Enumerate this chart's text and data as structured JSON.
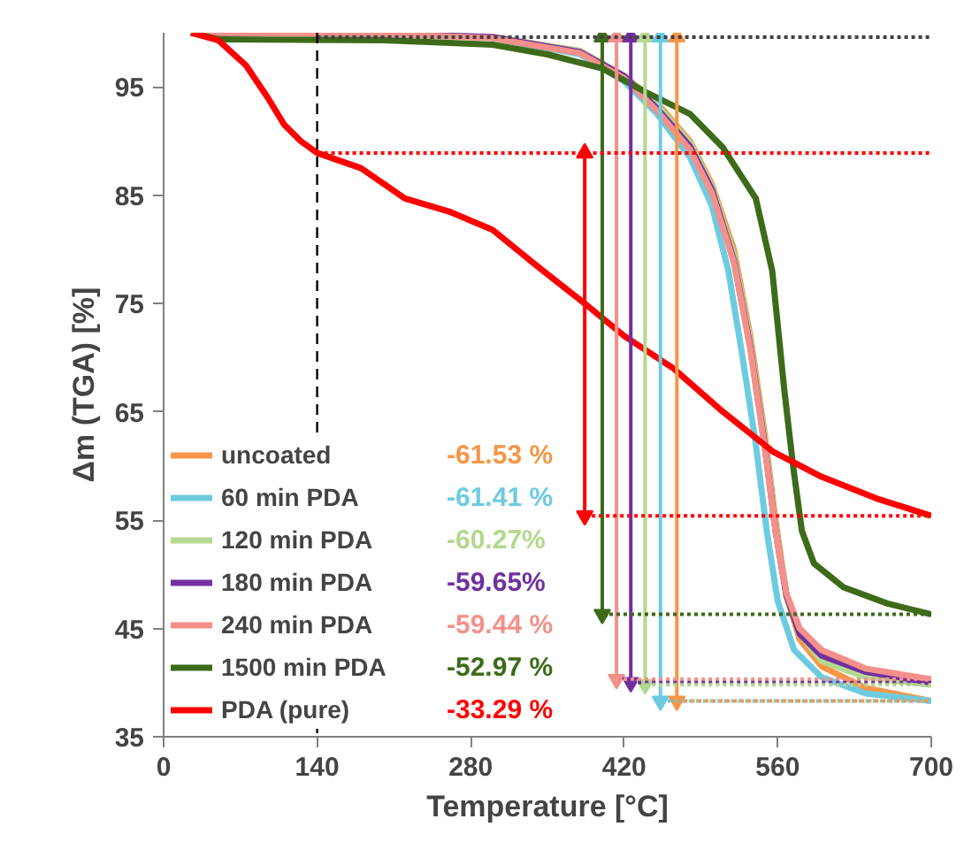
{
  "chart_data": {
    "type": "line",
    "xlabel": "Temperature [°C]",
    "ylabel": "Δm (TGA) [%]",
    "xlim": [
      0,
      700
    ],
    "xticks": [
      0,
      140,
      280,
      420,
      560,
      700
    ],
    "ylim": [
      35,
      100
    ],
    "yticks": [
      35,
      45,
      55,
      65,
      75,
      85,
      95
    ],
    "grid": false,
    "legend": "bottom left",
    "line_style": "solid",
    "annotations": [
      "-61.53 %",
      "-61.41 %",
      "-60.27%",
      "-59.65%",
      "-59.44 %",
      "-52.97 %",
      "-33.29 %"
    ],
    "ref_lines": [
      {
        "axis": "x",
        "value": 140,
        "color": "#000000",
        "line_style": "dashed"
      }
    ],
    "series": [
      {
        "name": "uncoated",
        "color": "#f79646",
        "x": [
          25,
          200,
          300,
          380,
          420,
          450,
          480,
          500,
          520,
          535,
          548,
          558,
          568,
          580,
          600,
          640,
          700
        ],
        "values": [
          100,
          99.9,
          99.6,
          98.3,
          96,
          93.5,
          90,
          86,
          80,
          72,
          63,
          55,
          48,
          44,
          41.5,
          39.5,
          38.3
        ]
      },
      {
        "name": "60 min PDA",
        "color": "#6dcbe0",
        "x": [
          300,
          380,
          420,
          450,
          480,
          500,
          515,
          528,
          540,
          550,
          560,
          575,
          600,
          640,
          700
        ],
        "values": [
          99.5,
          98,
          95.5,
          92.5,
          88.5,
          84,
          78,
          70,
          62,
          54,
          47.5,
          43,
          40.5,
          39,
          38.3
        ]
      },
      {
        "name": "120 min PDA",
        "color": "#b3d88f",
        "x": [
          25,
          200,
          300,
          380,
          420,
          450,
          480,
          500,
          520,
          535,
          548,
          558,
          568,
          580,
          600,
          640,
          700
        ],
        "values": [
          100,
          99.9,
          99.6,
          98.3,
          96,
          93.3,
          89.8,
          85.8,
          79.5,
          71.5,
          62.5,
          54.5,
          48,
          44.5,
          42,
          40.5,
          39.8
        ]
      },
      {
        "name": "180 min PDA",
        "color": "#7030a0",
        "x": [
          25,
          200,
          300,
          380,
          420,
          450,
          480,
          500,
          520,
          535,
          548,
          558,
          568,
          580,
          600,
          640,
          700
        ],
        "values": [
          100,
          99.9,
          99.6,
          98.2,
          96,
          93,
          89.5,
          85.5,
          79,
          71,
          62,
          54,
          48,
          44.5,
          42.5,
          41,
          40
        ]
      },
      {
        "name": "240 min PDA",
        "color": "#f4908a",
        "x": [
          25,
          200,
          300,
          380,
          420,
          450,
          480,
          500,
          520,
          535,
          548,
          558,
          568,
          580,
          600,
          640,
          700
        ],
        "values": [
          100,
          99.9,
          99.5,
          98.1,
          95.8,
          92.8,
          89.2,
          85.2,
          78.8,
          70.8,
          61.8,
          54,
          48.2,
          45,
          43,
          41.3,
          40.3
        ]
      },
      {
        "name": "1500 min PDA",
        "color": "#3d6b1a",
        "x": [
          25,
          50,
          200,
          300,
          350,
          400,
          440,
          480,
          510,
          540,
          555,
          566,
          574,
          582,
          593,
          620,
          660,
          700
        ],
        "values": [
          100,
          99.4,
          99.3,
          98.9,
          98,
          96.7,
          94.5,
          92.5,
          89.4,
          84.7,
          78,
          67,
          60,
          54,
          51,
          48.8,
          47.3,
          46.3
        ]
      },
      {
        "name": "PDA (pure)",
        "color": "#ff0000",
        "x": [
          25,
          50,
          75,
          95,
          110,
          125,
          140,
          180,
          220,
          260,
          300,
          340,
          384,
          420,
          465,
          510,
          556,
          600,
          650,
          700
        ],
        "values": [
          100,
          99.3,
          97,
          94,
          91.5,
          90,
          88.9,
          87.5,
          84.7,
          83.5,
          81.8,
          78.5,
          75,
          72,
          69,
          65,
          61.3,
          59,
          57,
          55.4
        ]
      },
      {
        "color": "#ff0000",
        "x": [
          384,
          384
        ],
        "values": [
          88.9,
          55.4
        ],
        "marker": "triangle"
      },
      {
        "color": "#3d6b1a",
        "x": [
          400,
          400
        ],
        "values": [
          99.6,
          46.3
        ],
        "marker": "triangle"
      },
      {
        "color": "#f4908a",
        "x": [
          413,
          413
        ],
        "values": [
          99.6,
          40.3
        ],
        "marker": "triangle"
      },
      {
        "color": "#7030a0",
        "x": [
          426,
          426
        ],
        "values": [
          99.6,
          40
        ],
        "marker": "triangle"
      },
      {
        "color": "#b3d88f",
        "x": [
          439,
          439
        ],
        "values": [
          99.6,
          39.8
        ],
        "marker": "triangle"
      },
      {
        "color": "#6dcbe0",
        "x": [
          453,
          453
        ],
        "values": [
          99.6,
          38.3
        ],
        "marker": "triangle"
      },
      {
        "color": "#f79646",
        "x": [
          468,
          468
        ],
        "values": [
          99.6,
          38.3
        ],
        "marker": "triangle"
      },
      {
        "color": "#404040",
        "x": [
          140,
          700
        ],
        "values": [
          99.6,
          99.6
        ],
        "line_style": "dotted"
      },
      {
        "color": "#ff0000",
        "x": [
          140,
          700
        ],
        "values": [
          88.9,
          88.9
        ],
        "line_style": "dotted"
      },
      {
        "color": "#ff0000",
        "x": [
          384,
          700
        ],
        "values": [
          55.4,
          55.4
        ],
        "line_style": "dotted"
      },
      {
        "color": "#3d6b1a",
        "x": [
          400,
          700
        ],
        "values": [
          46.3,
          46.3
        ],
        "line_style": "dotted"
      },
      {
        "color": "#f4908a",
        "x": [
          413,
          700
        ],
        "values": [
          40.3,
          40.3
        ],
        "line_style": "dotted"
      },
      {
        "color": "#7030a0",
        "x": [
          426,
          700
        ],
        "values": [
          40,
          40
        ],
        "line_style": "dotted"
      },
      {
        "color": "#b3d88f",
        "x": [
          439,
          700
        ],
        "values": [
          39.8,
          39.8
        ],
        "line_style": "dotted"
      },
      {
        "color": "#6dcbe0",
        "x": [
          453,
          700
        ],
        "values": [
          38.3,
          38.3
        ],
        "line_style": "dotted"
      },
      {
        "color": "#f79646",
        "x": [
          468,
          700
        ],
        "values": [
          38.3,
          38.3
        ],
        "line_style": "dotted"
      }
    ]
  }
}
